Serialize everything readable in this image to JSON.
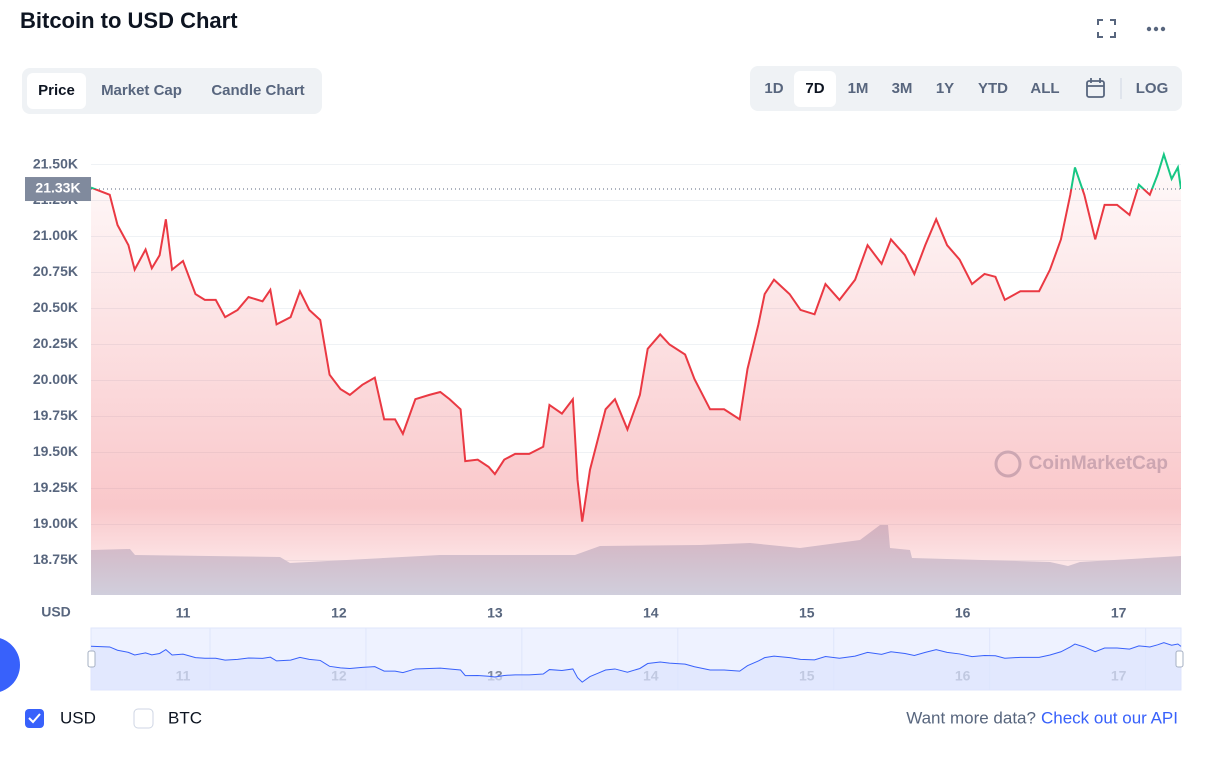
{
  "header": {
    "title": "Bitcoin to USD Chart"
  },
  "tabs": [
    "Price",
    "Market Cap",
    "Candle Chart"
  ],
  "active_tab": 0,
  "ranges": [
    "1D",
    "7D",
    "1M",
    "3M",
    "1Y",
    "YTD",
    "ALL"
  ],
  "active_range": 1,
  "scale_button": "LOG",
  "chart_data": {
    "type": "line",
    "yaxis_label": "USD",
    "watermark": "CoinMarketCap",
    "color": "#ea3943",
    "up_color": "#16c784",
    "reference": {
      "value": 21330,
      "label": "21.33K"
    },
    "xlim": [
      10.41,
      17.4
    ],
    "xticks": [
      11,
      12,
      13,
      14,
      15,
      16,
      17
    ],
    "ylim": [
      18510,
      21740
    ],
    "yticks": [
      {
        "value": 18750,
        "label": "18.75K"
      },
      {
        "value": 19000,
        "label": "19.00K"
      },
      {
        "value": 19250,
        "label": "19.25K"
      },
      {
        "value": 19500,
        "label": "19.50K"
      },
      {
        "value": 19750,
        "label": "19.75K"
      },
      {
        "value": 20000,
        "label": "20.00K"
      },
      {
        "value": 20250,
        "label": "20.25K"
      },
      {
        "value": 20500,
        "label": "20.50K"
      },
      {
        "value": 20750,
        "label": "20.75K"
      },
      {
        "value": 21000,
        "label": "21.00K"
      },
      {
        "value": 21250,
        "label": "21.25K"
      },
      {
        "value": 21500,
        "label": "21.50K"
      }
    ],
    "grid": true,
    "x": [
      10.41,
      10.53,
      10.58,
      10.65,
      10.69,
      10.76,
      10.8,
      10.85,
      10.89,
      10.93,
      11.0,
      11.08,
      11.14,
      11.21,
      11.27,
      11.35,
      11.42,
      11.51,
      11.56,
      11.6,
      11.69,
      11.75,
      11.81,
      11.88,
      11.94,
      12.01,
      12.07,
      12.15,
      12.23,
      12.29,
      12.36,
      12.41,
      12.49,
      12.58,
      12.65,
      12.71,
      12.78,
      12.81,
      12.89,
      12.96,
      13.0,
      13.06,
      13.13,
      13.22,
      13.31,
      13.35,
      13.43,
      13.5,
      13.53,
      13.56,
      13.61,
      13.66,
      13.71,
      13.77,
      13.85,
      13.93,
      13.98,
      14.06,
      14.12,
      14.22,
      14.28,
      14.38,
      14.47,
      14.57,
      14.62,
      14.69,
      14.73,
      14.79,
      14.89,
      14.96,
      15.05,
      15.12,
      15.21,
      15.31,
      15.39,
      15.48,
      15.54,
      15.63,
      15.69,
      15.76,
      15.83,
      15.9,
      15.98,
      16.06,
      16.14,
      16.21,
      16.27,
      16.37,
      16.49,
      16.56,
      16.63,
      16.69,
      16.72,
      16.78,
      16.85,
      16.91,
      16.99,
      17.07,
      17.13,
      17.2,
      17.25,
      17.29,
      17.34,
      17.38,
      17.4
    ],
    "values": [
      21340,
      21290,
      21080,
      20940,
      20770,
      20910,
      20780,
      20870,
      21120,
      20770,
      20830,
      20600,
      20560,
      20560,
      20440,
      20490,
      20580,
      20550,
      20630,
      20390,
      20440,
      20620,
      20490,
      20420,
      20040,
      19940,
      19900,
      19970,
      20020,
      19730,
      19730,
      19630,
      19870,
      19900,
      19920,
      19870,
      19800,
      19440,
      19450,
      19400,
      19350,
      19450,
      19490,
      19490,
      19540,
      19830,
      19770,
      19870,
      19310,
      19020,
      19380,
      19590,
      19800,
      19870,
      19660,
      19900,
      20220,
      20320,
      20250,
      20180,
      20010,
      19800,
      19800,
      19730,
      20080,
      20390,
      20600,
      20700,
      20600,
      20490,
      20460,
      20670,
      20560,
      20700,
      20940,
      20810,
      20980,
      20870,
      20740,
      20940,
      21120,
      20940,
      20840,
      20670,
      20740,
      20720,
      20560,
      20620,
      20620,
      20770,
      20980,
      21290,
      21480,
      21290,
      20980,
      21220,
      21220,
      21150,
      21360,
      21290,
      21430,
      21570,
      21400,
      21480,
      21330
    ]
  },
  "currencies": [
    {
      "label": "USD",
      "checked": true
    },
    {
      "label": "BTC",
      "checked": false
    }
  ],
  "footer": {
    "prompt": "Want more data?",
    "link": "Check out our API"
  }
}
